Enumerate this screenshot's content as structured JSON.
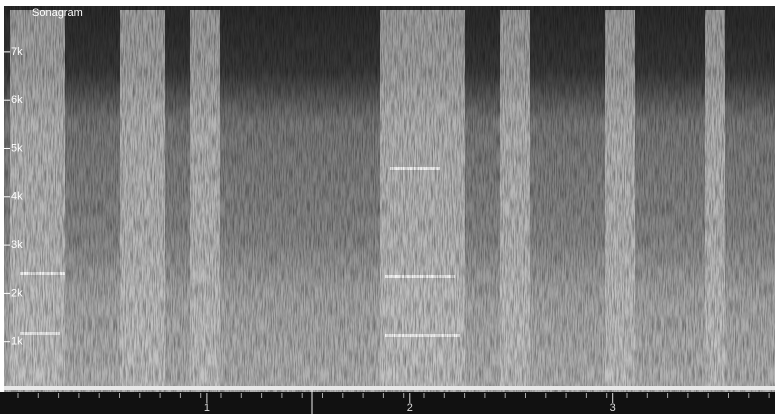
{
  "chart_data": {
    "type": "spectrogram",
    "title": "Sonagram",
    "ylim": [
      0,
      7950
    ],
    "yticks": [
      {
        "value": 1000,
        "label": "1k"
      },
      {
        "value": 2000,
        "label": "2k"
      },
      {
        "value": 3000,
        "label": "3k"
      },
      {
        "value": 4000,
        "label": "4k"
      },
      {
        "value": 5000,
        "label": "5k"
      },
      {
        "value": 6000,
        "label": "6k"
      },
      {
        "value": 7000,
        "label": "7k"
      }
    ],
    "xlim": [
      0,
      3.8
    ],
    "xticks": [
      1,
      2,
      3
    ]
  }
}
